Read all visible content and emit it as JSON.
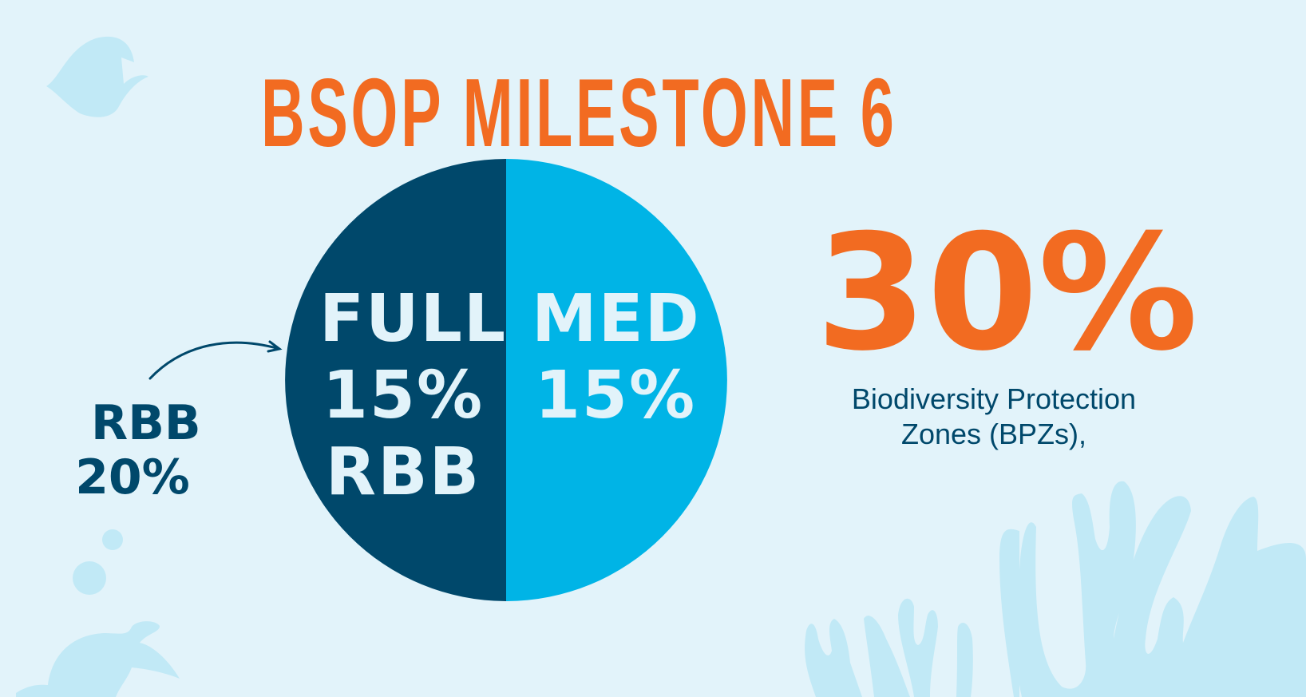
{
  "title": "BSOP MILESTONE 6",
  "chart_data": {
    "type": "pie",
    "title": "BSOP MILESTONE 6",
    "categories": [
      "FULL 15% RBB",
      "MED 15%"
    ],
    "values": [
      15,
      15
    ],
    "colors": [
      "#00486b",
      "#00b4e6"
    ]
  },
  "segments": {
    "full": {
      "line1": "FULL",
      "line2": "15%",
      "line3": "RBB"
    },
    "med": {
      "line1": "MED",
      "line2": "15%"
    }
  },
  "outside_label": {
    "line1": "RBB",
    "line2": "20%"
  },
  "total": {
    "value": "30%",
    "caption_line1": "Biodiversity Protection",
    "caption_line2": "Zones (BPZs),"
  },
  "colors": {
    "background": "#e2f3fa",
    "decor": "#c1e9f6",
    "dark": "#00486b",
    "accent": "#f26b21",
    "light": "#00b4e6"
  }
}
